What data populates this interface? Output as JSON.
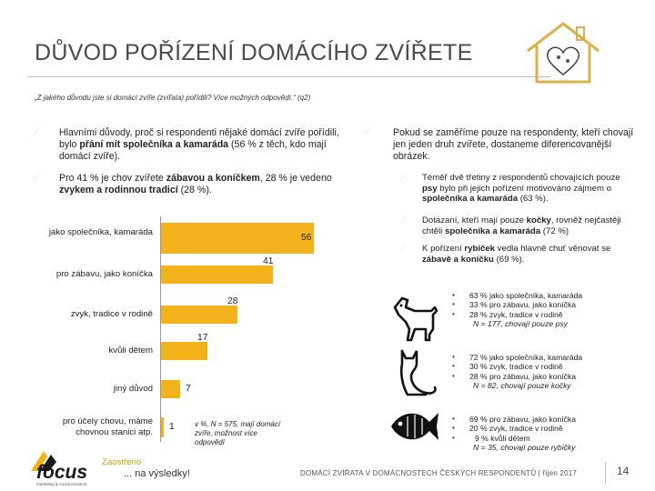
{
  "title": "DŮVOD POŘÍZENÍ DOMÁCÍHO ZVÍŘETE",
  "question": "„Z jakého důvodu jste si domácí zvíře (zvířata) pořídili? Více možných odpovědí.“ (q2)",
  "left_bullets": [
    {
      "pre": "Hlavními důvody, proč si respondenti nějaké domácí zvíře pořídili, bylo ",
      "bold": "přání mít společníka a kamaráda",
      "post": " (56 % z těch, kdo mají domácí zvíře)."
    },
    {
      "pre": "Pro 41 % je chov zvířete ",
      "bold": "zábavou a koníčkem",
      "post": ", 28 % je vedeno ",
      "bold2": "zvykem a rodinnou tradicí",
      "post2": " (28 %)."
    }
  ],
  "right_intro": "Pokud se zaměříme pouze na respondenty, kteří chovají jen jeden druh zvířete, dostaneme diferencovanější obrázek.",
  "right_bullets": [
    {
      "pre": "Téměř dvě třetiny z respondentů chovajících pouze ",
      "bold": "psy",
      "mid": " bylo při jejich pořízení motivováno zájmem o ",
      "bold2": "společníka a kamaráda",
      "post": " (63 %)."
    },
    {
      "pre": "Dotázaní, kteří mají pouze ",
      "bold": "kočky",
      "mid": ", rovněž nejčastěji chtěli ",
      "bold2": "společníka a kamaráda",
      "post": " (72 %)"
    },
    {
      "pre": "K pořízení ",
      "bold": "rybiček",
      "mid": " vedla hlavně chuť věnovat se ",
      "bold2": "zábavě a koníčku",
      "post": " (69 %)."
    }
  ],
  "chart_data": {
    "type": "bar",
    "orientation": "horizontal",
    "categories": [
      "jako společníka, kamaráda",
      "pro zábavu, jako koníčka",
      "zvyk, tradice v rodině",
      "kvůli dětem",
      "jiný důvod",
      "pro účely chovu, máme chovnou stanici atp."
    ],
    "values": [
      56,
      41,
      28,
      17,
      7,
      1
    ],
    "value_labels": [
      "56",
      "41",
      "28",
      "17",
      "7",
      "1"
    ],
    "unit": "%",
    "xlim": [
      0,
      56
    ],
    "bar_color": "#f2b21c",
    "note": "v %, N = 575, mají domácí zvíře, možnost více odpovědí"
  },
  "animals": [
    {
      "icon": "dog-icon",
      "lines": [
        "63 % jako společníka, kamaráda",
        "33 % pro zábavu, jako koníčka",
        "28 % zvyk, tradice v rodině"
      ],
      "n": "N = 177, chovají pouze psy"
    },
    {
      "icon": "cat-icon",
      "lines": [
        "72 % jako společníka, kamaráda",
        "30 % zvyk, tradice v rodině",
        "28 % pro zábavu, jako koníčka"
      ],
      "n": "N = 82, chovají pouze kočky"
    },
    {
      "icon": "fish-icon",
      "lines": [
        "69 % pro zábavu, jako koníčka",
        "20 % zvyk, tradice v rodině",
        "9 % kvůli dětem"
      ],
      "n": "N = 35, chovají pouze rybičky"
    }
  ],
  "footer": {
    "text": "DOMÁCÍ ZVÍŘATA V DOMÁCNOSTECH ČESKÝCH RESPONDENTŮ | říjen 2017",
    "page": "14"
  },
  "logo": {
    "focus": "focus",
    "zaostreno": "Zaostřeno",
    "tagline": "... na výsledky!",
    "sub": "marketing & social research"
  }
}
